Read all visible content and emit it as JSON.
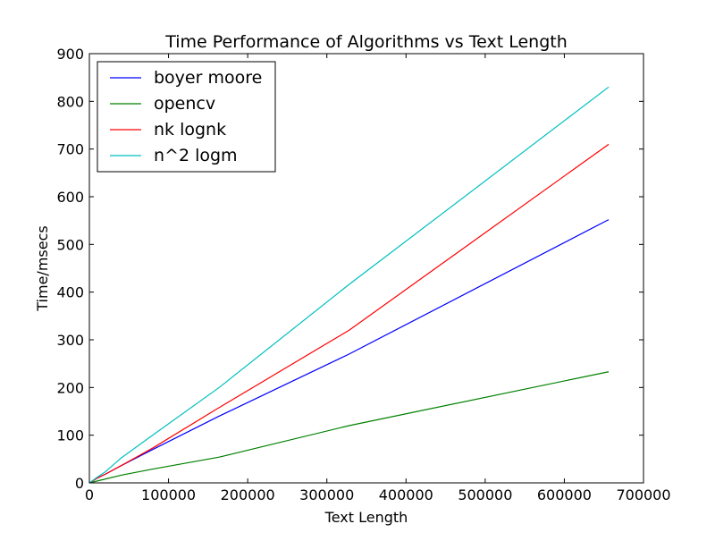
{
  "chart_data": {
    "type": "line",
    "title": "Time Performance of Algorithms vs Text Length",
    "xlabel": "Text Length",
    "ylabel": "Time/msecs",
    "xlim": [
      0,
      700000
    ],
    "ylim": [
      0,
      900
    ],
    "xticks": [
      0,
      100000,
      200000,
      300000,
      400000,
      500000,
      600000,
      700000
    ],
    "xtick_labels": [
      "0",
      "100000",
      "200000",
      "300000",
      "400000",
      "500000",
      "600000",
      "700000"
    ],
    "yticks": [
      0,
      100,
      200,
      300,
      400,
      500,
      600,
      700,
      800,
      900
    ],
    "ytick_labels": [
      "0",
      "100",
      "200",
      "300",
      "400",
      "500",
      "600",
      "700",
      "800",
      "900"
    ],
    "grid": false,
    "legend_position": "top-left",
    "series": [
      {
        "name": "boyer moore",
        "color": "#0000ff",
        "x": [
          0,
          5000,
          10000,
          20000,
          40000,
          80000,
          164000,
          328000,
          656000
        ],
        "y": [
          0,
          5,
          10,
          18,
          36,
          70,
          140,
          270,
          552
        ]
      },
      {
        "name": "opencv",
        "color": "#008000",
        "x": [
          0,
          5000,
          10000,
          20000,
          40000,
          80000,
          164000,
          328000,
          656000
        ],
        "y": [
          0,
          2,
          4,
          8,
          16,
          29,
          54,
          120,
          233
        ]
      },
      {
        "name": "nk lognk",
        "color": "#ff0000",
        "x": [
          0,
          5000,
          10000,
          20000,
          40000,
          80000,
          164000,
          328000,
          656000
        ],
        "y": [
          0,
          5,
          10,
          18,
          36,
          73,
          158,
          320,
          710
        ]
      },
      {
        "name": "n^2 logm",
        "color": "#00bfbf",
        "x": [
          0,
          5000,
          10000,
          20000,
          40000,
          80000,
          164000,
          328000,
          656000
        ],
        "y": [
          0,
          6,
          12,
          23,
          52,
          100,
          200,
          416,
          830
        ]
      }
    ]
  }
}
